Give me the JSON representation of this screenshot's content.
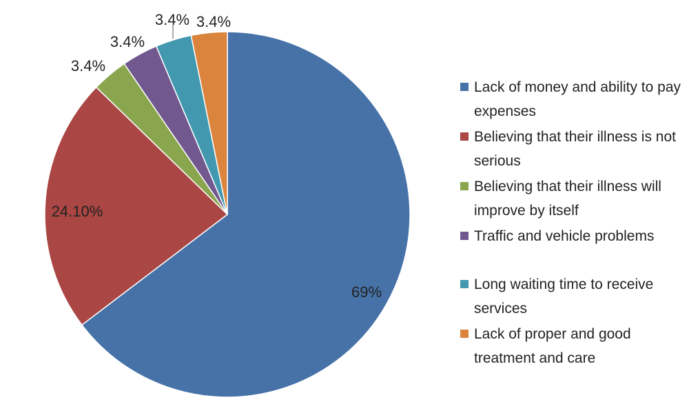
{
  "chart_data": {
    "type": "pie",
    "title": "",
    "slices": [
      {
        "label": "Lack of money and ability to pay expenses",
        "value": 69,
        "display": "69%",
        "color": "#4672A8"
      },
      {
        "label": "Believing that their illness is not serious",
        "value": 24.1,
        "display": "24.10%",
        "color": "#AA4643"
      },
      {
        "label": "Believing that their illness will improve by itself",
        "value": 3.4,
        "display": "3.4%",
        "color": "#89A54E"
      },
      {
        "label": "Traffic and vehicle problems",
        "value": 3.4,
        "display": "3.4%",
        "color": "#71588F"
      },
      {
        "label": "Long waiting time to receive services",
        "value": 3.4,
        "display": "3.4%",
        "color": "#4198AF"
      },
      {
        "label": "Lack of proper and good treatment and care",
        "value": 3.4,
        "display": "3.4%",
        "color": "#DB843D"
      }
    ],
    "legend_position": "right"
  }
}
